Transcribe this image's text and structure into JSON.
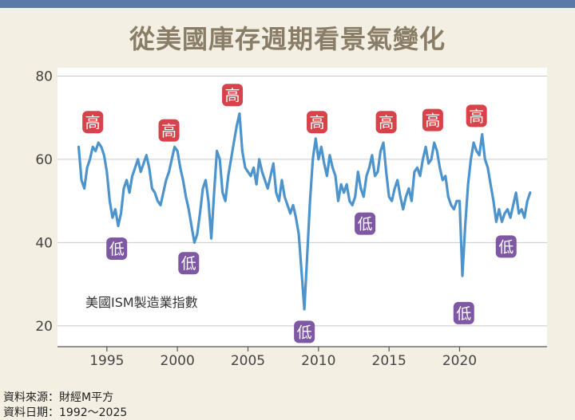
{
  "title": "從美國庫存週期看景氣變化",
  "source_lines": [
    "資料來源：財經M平方",
    "資料日期：1992～2025"
  ],
  "colors": {
    "line": "#4d94cc",
    "high": "#d6434a",
    "low": "#7e58a3",
    "plot_bg": "#ffffff",
    "title": "#8a7d67",
    "top_bar": "#5b79a6"
  },
  "chart_data": {
    "type": "line",
    "title": "",
    "series_label": "美國ISM製造業指數",
    "xlim": [
      1991.5,
      2026.2
    ],
    "ylim": [
      15,
      82
    ],
    "x_ticks": [
      1995,
      2000,
      2005,
      2010,
      2015,
      2020
    ],
    "y_ticks": [
      20,
      40,
      60,
      80
    ],
    "grid": "horizontal",
    "series": [
      {
        "x": [
          1993.0,
          1993.2,
          1993.4,
          1993.6,
          1993.8,
          1994.0,
          1994.2,
          1994.4,
          1994.6,
          1994.8,
          1995.0,
          1995.2,
          1995.4,
          1995.6,
          1995.8,
          1996.0,
          1996.2,
          1996.4,
          1996.6,
          1996.8,
          1997.0,
          1997.2,
          1997.4,
          1997.6,
          1997.8,
          1998.0,
          1998.2,
          1998.4,
          1998.6,
          1998.8,
          1999.0,
          1999.2,
          1999.4,
          1999.6,
          1999.8,
          2000.0,
          2000.2,
          2000.4,
          2000.6,
          2000.8,
          2001.0,
          2001.2,
          2001.4,
          2001.6,
          2001.8,
          2002.0,
          2002.2,
          2002.4,
          2002.6,
          2002.8,
          2003.0,
          2003.2,
          2003.4,
          2003.6,
          2003.8,
          2004.0,
          2004.2,
          2004.4,
          2004.6,
          2004.8,
          2005.0,
          2005.2,
          2005.4,
          2005.6,
          2005.8,
          2006.0,
          2006.2,
          2006.4,
          2006.6,
          2006.8,
          2007.0,
          2007.2,
          2007.4,
          2007.6,
          2007.8,
          2008.0,
          2008.2,
          2008.4,
          2008.6,
          2008.8,
          2009.0,
          2009.2,
          2009.4,
          2009.6,
          2009.8,
          2010.0,
          2010.2,
          2010.4,
          2010.6,
          2010.8,
          2011.0,
          2011.2,
          2011.4,
          2011.6,
          2011.8,
          2012.0,
          2012.2,
          2012.4,
          2012.6,
          2012.8,
          2013.0,
          2013.2,
          2013.4,
          2013.6,
          2013.8,
          2014.0,
          2014.2,
          2014.4,
          2014.6,
          2014.8,
          2015.0,
          2015.2,
          2015.4,
          2015.6,
          2015.8,
          2016.0,
          2016.2,
          2016.4,
          2016.6,
          2016.8,
          2017.0,
          2017.2,
          2017.4,
          2017.6,
          2017.8,
          2018.0,
          2018.2,
          2018.4,
          2018.6,
          2018.8,
          2019.0,
          2019.2,
          2019.4,
          2019.6,
          2019.8,
          2020.0,
          2020.2,
          2020.4,
          2020.6,
          2020.8,
          2021.0,
          2021.2,
          2021.4,
          2021.6,
          2021.8,
          2022.0,
          2022.2,
          2022.4,
          2022.6,
          2022.8,
          2023.0,
          2023.2,
          2023.4,
          2023.6,
          2023.8,
          2024.0,
          2024.2,
          2024.4,
          2024.6,
          2024.8,
          2025.0
        ],
        "y": [
          63,
          55,
          53,
          58,
          60,
          63,
          62,
          64,
          63,
          61,
          57,
          50,
          46,
          48,
          44,
          47,
          53,
          55,
          52,
          56,
          58,
          60,
          57,
          59,
          61,
          58,
          53,
          52,
          50,
          49,
          52,
          55,
          57,
          60,
          63,
          62,
          58,
          55,
          51,
          48,
          44,
          40,
          42,
          47,
          53,
          55,
          50,
          41,
          52,
          62,
          60,
          52,
          50,
          56,
          60,
          64,
          68,
          71,
          62,
          58,
          57,
          56,
          58,
          54,
          60,
          57,
          55,
          53,
          56,
          59,
          52,
          50,
          55,
          51,
          49,
          47,
          49,
          46,
          42,
          33,
          24,
          37,
          50,
          60,
          65,
          60,
          63,
          59,
          56,
          61,
          58,
          56,
          50,
          54,
          52,
          54,
          50,
          49,
          51,
          57,
          53,
          51,
          56,
          58,
          61,
          56,
          57,
          62,
          64,
          57,
          51,
          50,
          53,
          55,
          51,
          48,
          51,
          53,
          50,
          57,
          58,
          56,
          60,
          63,
          59,
          60,
          64,
          62,
          58,
          55,
          56,
          51,
          49,
          48,
          50,
          50,
          32,
          44,
          54,
          60,
          64,
          62,
          61,
          66,
          60,
          58,
          54,
          50,
          45,
          48,
          45,
          47,
          48,
          46,
          49,
          52,
          47,
          48,
          46,
          50,
          52
        ],
        "color": "#4d94cc"
      }
    ],
    "annotations": [
      {
        "x": 1994.0,
        "y": 65.5,
        "text": "高",
        "kind": "high"
      },
      {
        "x": 1999.4,
        "y": 63.5,
        "text": "高",
        "kind": "high"
      },
      {
        "x": 2003.9,
        "y": 72.0,
        "text": "高",
        "kind": "high"
      },
      {
        "x": 2009.9,
        "y": 65.5,
        "text": "高",
        "kind": "high"
      },
      {
        "x": 2014.8,
        "y": 65.5,
        "text": "高",
        "kind": "high"
      },
      {
        "x": 2018.1,
        "y": 66.0,
        "text": "高",
        "kind": "high"
      },
      {
        "x": 2021.2,
        "y": 67.0,
        "text": "高",
        "kind": "high"
      },
      {
        "x": 1995.7,
        "y": 42.0,
        "text": "低",
        "kind": "low"
      },
      {
        "x": 2000.8,
        "y": 38.5,
        "text": "低",
        "kind": "low"
      },
      {
        "x": 2009.0,
        "y": 22.0,
        "text": "低",
        "kind": "low"
      },
      {
        "x": 2013.3,
        "y": 48.0,
        "text": "低",
        "kind": "low"
      },
      {
        "x": 2020.3,
        "y": 26.5,
        "text": "低",
        "kind": "low"
      },
      {
        "x": 2023.3,
        "y": 42.5,
        "text": "低",
        "kind": "low"
      }
    ]
  }
}
